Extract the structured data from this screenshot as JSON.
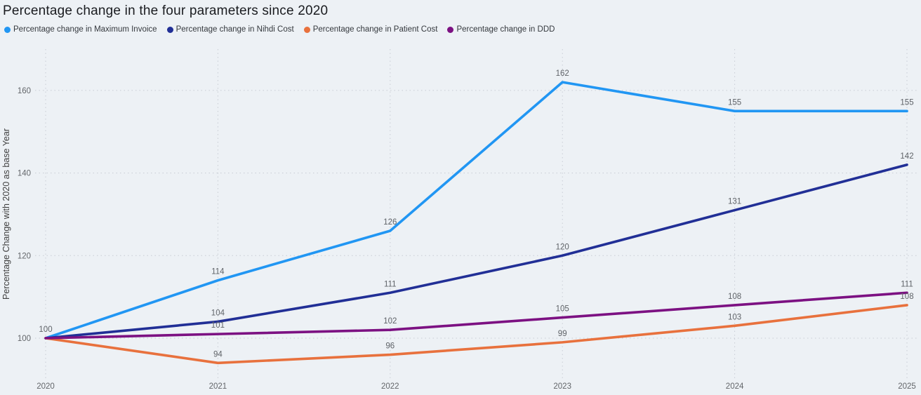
{
  "chart_data": {
    "type": "line",
    "title": "Percentage change in the four parameters since 2020",
    "xlabel": "",
    "ylabel": "Percentage Change with 2020 as base Year",
    "categories": [
      "2020",
      "2021",
      "2022",
      "2023",
      "2024",
      "2025"
    ],
    "yticks": [
      100,
      120,
      140,
      160
    ],
    "ylim": [
      88,
      170
    ],
    "grid": "dotted",
    "legend_position": "top",
    "series": [
      {
        "id": "maximum-invoice",
        "name": "Percentage change in Maximum Invoice",
        "color": "#2196f3",
        "values": [
          100,
          114,
          126,
          162,
          155,
          155
        ]
      },
      {
        "id": "nihdi-cost",
        "name": "Percentage change in Nihdi Cost",
        "color": "#212f96",
        "values": [
          100,
          104,
          111,
          120,
          131,
          142
        ]
      },
      {
        "id": "patient-cost",
        "name": "Percentage change in Patient Cost",
        "color": "#e8713d",
        "values": [
          100,
          94,
          96,
          99,
          103,
          108
        ]
      },
      {
        "id": "ddd",
        "name": "Percentage change in DDD",
        "color": "#7c1182",
        "values": [
          100,
          101,
          102,
          105,
          108,
          111
        ]
      }
    ]
  },
  "colors": {
    "background": "#edf1f5",
    "grid": "#c8ccd4",
    "axis_text": "#63666a",
    "data_label": "#5f6368",
    "title_text": "#1a1c20",
    "legend_text": "#35393e"
  }
}
